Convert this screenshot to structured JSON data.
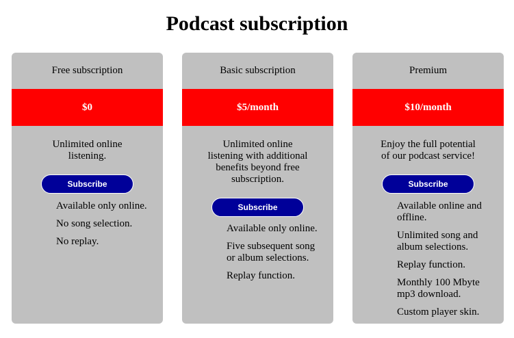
{
  "page": {
    "title": "Podcast subscription"
  },
  "plans": [
    {
      "name": "Free subscription",
      "price": "$0",
      "description": "Unlimited online listening.",
      "button_label": "Subscribe",
      "features": [
        "Available only online.",
        "No song selection.",
        "No replay."
      ]
    },
    {
      "name": "Basic subscription",
      "price": "$5/month",
      "description": "Unlimited online listening with additional benefits beyond free subscription.",
      "button_label": "Subscribe",
      "features": [
        "Available only online.",
        "Five subsequent song or album selections.",
        "Replay function."
      ]
    },
    {
      "name": "Premium",
      "price": "$10/month",
      "description": "Enjoy the full potential of our podcast service!",
      "button_label": "Subscribe",
      "features": [
        "Available online and offline.",
        "Unlimited song and album selections.",
        "Replay function.",
        "Monthly 100 Mbyte mp3 download.",
        "Custom player skin."
      ]
    }
  ],
  "colors": {
    "card_background": "#c0c0c0",
    "price_band": "#ff0000",
    "button": "#000099"
  }
}
